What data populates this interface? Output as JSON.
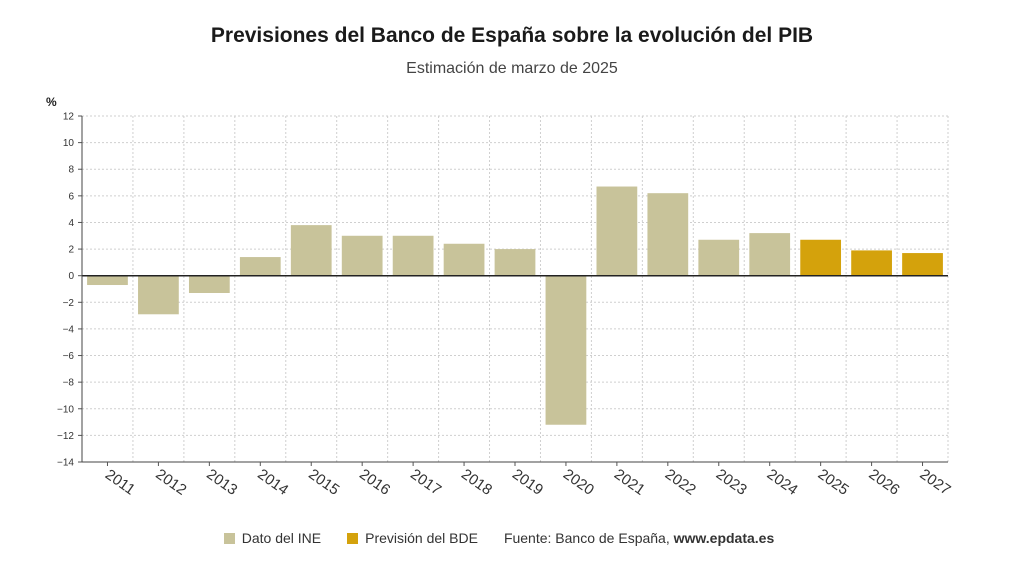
{
  "chart_data": {
    "type": "bar",
    "title": "Previsiones del Banco de España sobre la evolución del PIB",
    "subtitle": "Estimación de marzo de 2025",
    "ylabel": "%",
    "ylim": [
      -14,
      12
    ],
    "yticks": [
      12,
      10,
      8,
      6,
      4,
      2,
      0,
      -2,
      -4,
      -6,
      -8,
      -10,
      -12,
      -14
    ],
    "ytick_labels": [
      "12",
      "10",
      "8",
      "6",
      "4",
      "2",
      "0",
      "−2",
      "−4",
      "−6",
      "−8",
      "−10",
      "−12",
      "−14"
    ],
    "grid": true,
    "legend_position": "bottom",
    "categories": [
      "2011",
      "2012",
      "2013",
      "2014",
      "2015",
      "2016",
      "2017",
      "2018",
      "2019",
      "2020",
      "2021",
      "2022",
      "2023",
      "2024",
      "2025",
      "2026",
      "2027"
    ],
    "values": [
      -0.7,
      -2.9,
      -1.3,
      1.4,
      3.8,
      3.0,
      3.0,
      2.4,
      2.0,
      -11.2,
      6.7,
      6.2,
      2.7,
      3.2,
      2.7,
      1.9,
      1.7
    ],
    "series_type": [
      "ine",
      "ine",
      "ine",
      "ine",
      "ine",
      "ine",
      "ine",
      "ine",
      "ine",
      "ine",
      "ine",
      "ine",
      "ine",
      "ine",
      "bde",
      "bde",
      "bde"
    ],
    "series": [
      {
        "key": "ine",
        "name": "Dato del INE",
        "color": "#c8c39a"
      },
      {
        "key": "bde",
        "name": "Previsión del BDE",
        "color": "#d4a20c"
      }
    ]
  },
  "source": {
    "prefix": "Fuente: Banco de España, ",
    "site": "www.epdata.es"
  }
}
